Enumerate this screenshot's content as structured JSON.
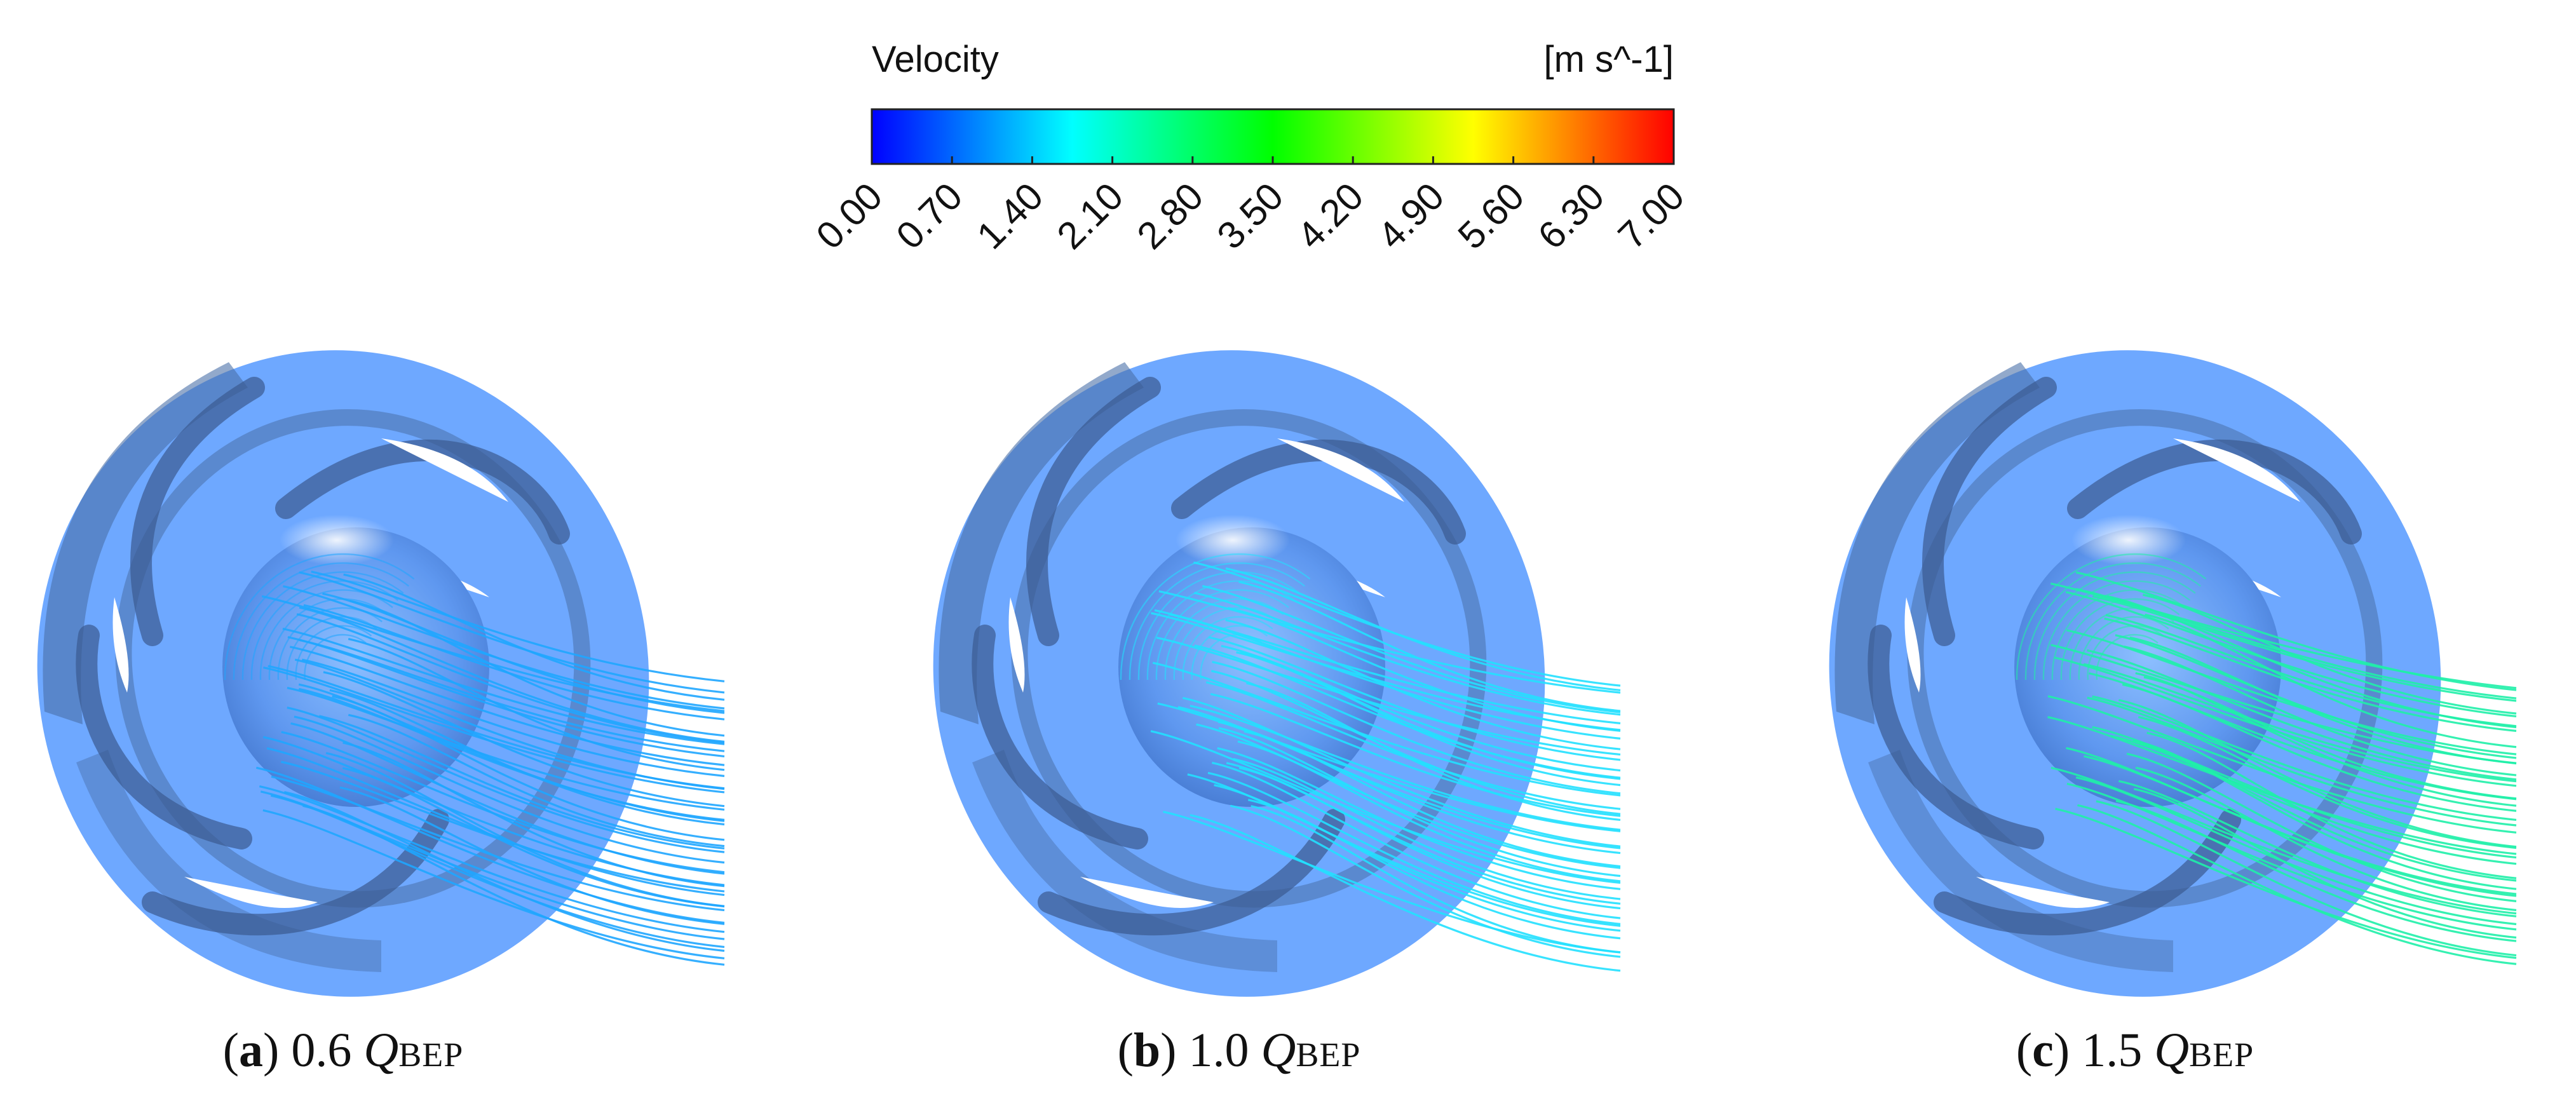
{
  "colorbar": {
    "title": "Velocity",
    "unit": "[m s^-1]",
    "ticks": [
      "0.00",
      "0.70",
      "1.40",
      "2.10",
      "2.80",
      "3.50",
      "4.20",
      "4.90",
      "5.60",
      "6.30",
      "7.00"
    ],
    "range": [
      0,
      7
    ],
    "stops": [
      {
        "value": 0.0,
        "color": "#0000ff"
      },
      {
        "value": 1.75,
        "color": "#00ffff"
      },
      {
        "value": 3.5,
        "color": "#00ff00"
      },
      {
        "value": 5.25,
        "color": "#ffff00"
      },
      {
        "value": 7.0,
        "color": "#ff0000"
      }
    ]
  },
  "panels": [
    {
      "letter": "a",
      "flow": "0.6",
      "symbol": "Q",
      "subscript": "BEP",
      "streamline_color": "#1fa6ff"
    },
    {
      "letter": "b",
      "flow": "1.0",
      "symbol": "Q",
      "subscript": "BEP",
      "streamline_color": "#22e0ff"
    },
    {
      "letter": "c",
      "flow": "1.5",
      "symbol": "Q",
      "subscript": "BEP",
      "streamline_color": "#1ff0a8"
    }
  ],
  "colors": {
    "impeller_face": "#6ea8ff",
    "impeller_dark": "#4a6fa8",
    "impeller_shadow": "#3a5a90"
  }
}
